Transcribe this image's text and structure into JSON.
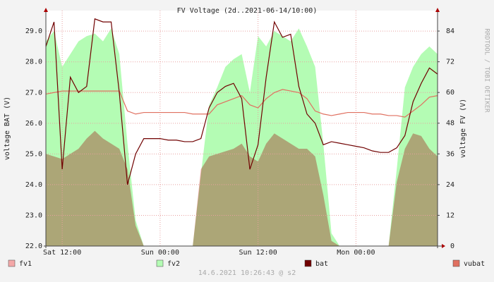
{
  "chart_data": {
    "type": "line",
    "title": "FV Voltage (2d..2021-06-14/10:00)",
    "y_label": "voltage BAT (V)",
    "y2_label": "voltage FV (V)",
    "watermark": "RRDTOOL / TOBI OETIKER",
    "footer": "14.6.2021 10:26:43 @ s2",
    "x": [
      0,
      1,
      2,
      3,
      4,
      5,
      6,
      7,
      8,
      9,
      10,
      11,
      12,
      13,
      14,
      15,
      16,
      17,
      18,
      19,
      20,
      21,
      22,
      23,
      24,
      25,
      26,
      27,
      28,
      29,
      30,
      31,
      32,
      33,
      34,
      35,
      36,
      37,
      38,
      39,
      40,
      41,
      42,
      43,
      44,
      45,
      46,
      47,
      48
    ],
    "xlim": [
      0,
      48
    ],
    "xticks": [
      {
        "value": 2,
        "label": "Sat 12:00"
      },
      {
        "value": 14,
        "label": "Sun 00:00"
      },
      {
        "value": 26,
        "label": "Sun 12:00"
      },
      {
        "value": 38,
        "label": "Mon 00:00"
      }
    ],
    "ylim": [
      22,
      29.67
    ],
    "yticks": [
      {
        "value": 22,
        "label": "22.0"
      },
      {
        "value": 23,
        "label": "23.0"
      },
      {
        "value": 24,
        "label": "24.0"
      },
      {
        "value": 25,
        "label": "25.0"
      },
      {
        "value": 26,
        "label": "26.0"
      },
      {
        "value": 27,
        "label": "27.0"
      },
      {
        "value": 28,
        "label": "28.0"
      },
      {
        "value": 29,
        "label": "29.0"
      }
    ],
    "y2lim": [
      0,
      92
    ],
    "y2ticks": [
      0,
      12,
      24,
      36,
      48,
      60,
      72,
      84
    ],
    "grid": true,
    "series": [
      {
        "name": "fv1",
        "color": "#f4a8a8",
        "style": "area",
        "axis": "y2",
        "values": [
          36,
          35,
          34,
          36,
          38,
          42,
          45,
          42,
          40,
          38,
          30,
          8,
          0,
          0,
          0,
          0,
          0,
          0,
          0,
          30,
          35,
          36,
          37,
          38,
          40,
          35,
          33,
          40,
          44,
          42,
          40,
          38,
          38,
          35,
          20,
          2,
          0,
          0,
          0,
          0,
          0,
          0,
          0,
          25,
          38,
          44,
          43,
          38,
          35
        ]
      },
      {
        "name": "fv2",
        "color": "#b4fcb4",
        "style": "area",
        "axis": "y2",
        "values": [
          80,
          84,
          70,
          75,
          80,
          82,
          83,
          80,
          85,
          75,
          40,
          10,
          0,
          0,
          0,
          0,
          0,
          0,
          0,
          28,
          55,
          62,
          70,
          73,
          75,
          60,
          82,
          78,
          84,
          82,
          80,
          85,
          78,
          70,
          40,
          5,
          0,
          0,
          0,
          0,
          0,
          0,
          0,
          30,
          62,
          70,
          75,
          78,
          75
        ]
      },
      {
        "name": "bat",
        "color": "#700000",
        "style": "line",
        "values": [
          28.5,
          29.3,
          24.5,
          27.5,
          27.0,
          27.2,
          29.4,
          29.3,
          29.3,
          27.0,
          24.0,
          25.0,
          25.5,
          25.5,
          25.5,
          25.45,
          25.45,
          25.4,
          25.4,
          25.5,
          26.5,
          27.0,
          27.2,
          27.3,
          26.8,
          24.5,
          25.3,
          27.5,
          29.3,
          28.8,
          28.9,
          27.2,
          26.3,
          26.0,
          25.3,
          25.4,
          25.35,
          25.3,
          25.25,
          25.2,
          25.1,
          25.05,
          25.05,
          25.2,
          25.6,
          26.7,
          27.3,
          27.8,
          27.6
        ]
      },
      {
        "name": "vubat",
        "color": "#e07060",
        "style": "line",
        "values": [
          26.95,
          27.0,
          27.05,
          27.05,
          27.05,
          27.05,
          27.05,
          27.05,
          27.05,
          27.05,
          26.4,
          26.3,
          26.35,
          26.35,
          26.35,
          26.35,
          26.35,
          26.35,
          26.3,
          26.3,
          26.3,
          26.6,
          26.7,
          26.8,
          26.9,
          26.6,
          26.5,
          26.8,
          27.0,
          27.1,
          27.05,
          27.0,
          26.8,
          26.4,
          26.3,
          26.25,
          26.3,
          26.35,
          26.35,
          26.35,
          26.3,
          26.3,
          26.25,
          26.25,
          26.2,
          26.4,
          26.6,
          26.85,
          26.9
        ]
      }
    ]
  }
}
